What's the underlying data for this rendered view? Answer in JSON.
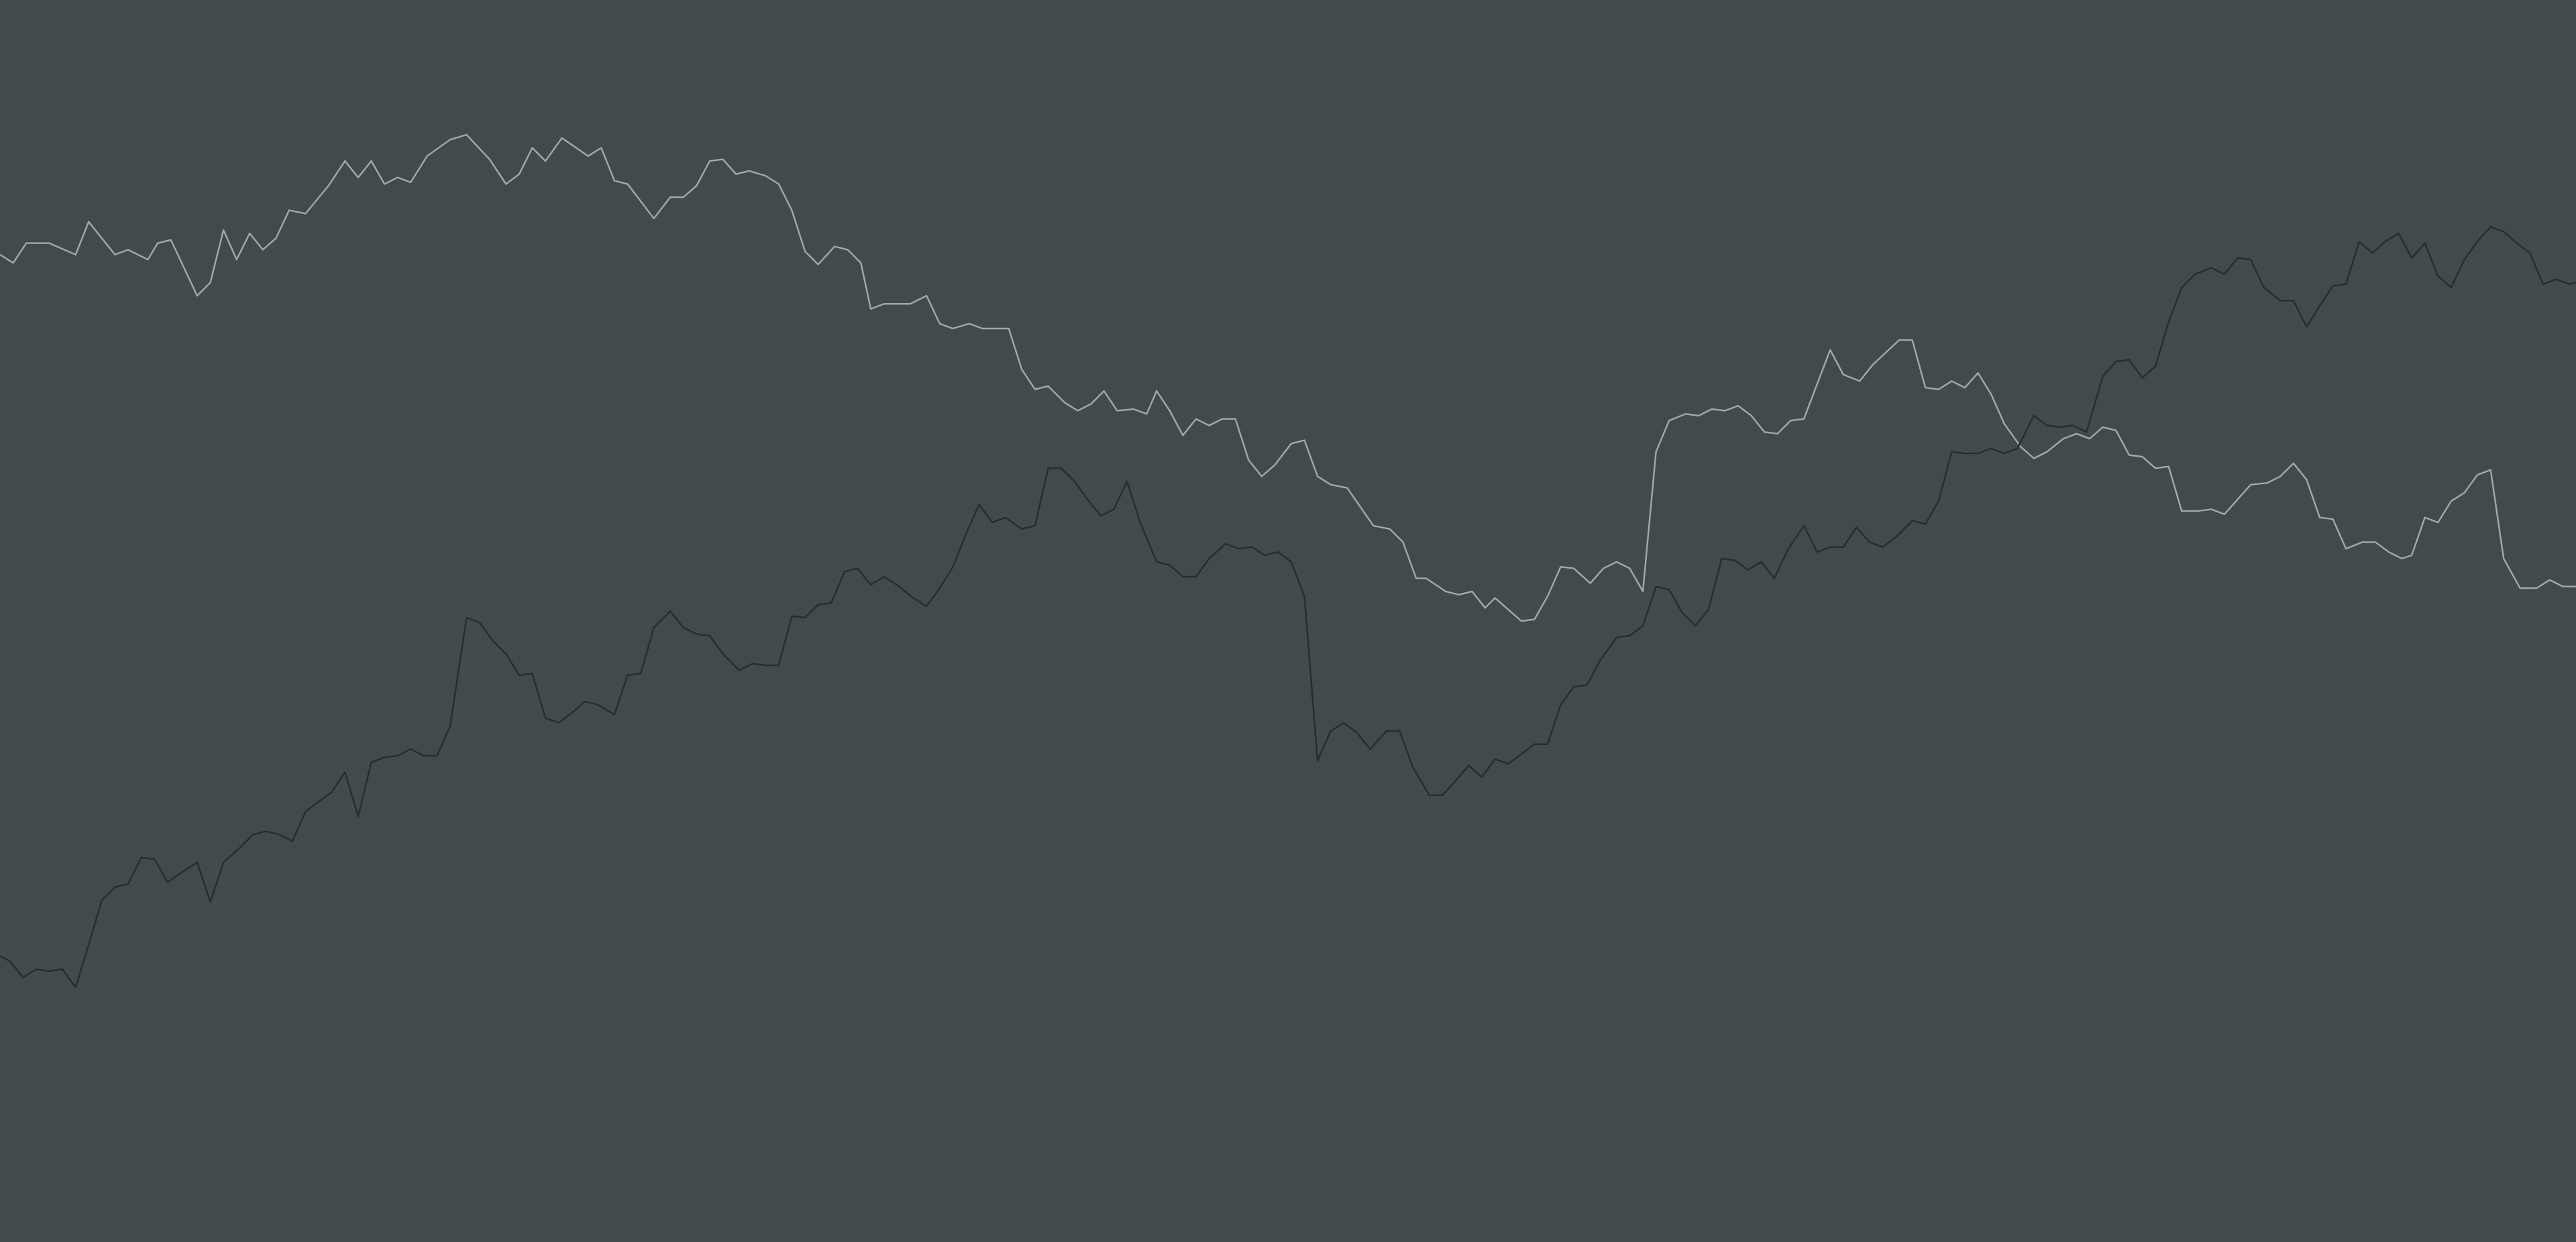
{
  "chart_data": {
    "type": "line",
    "background": "#434a4e",
    "xlim": [
      0,
      1568
    ],
    "ylim": [
      756,
      0
    ],
    "series": [
      {
        "color": "#a3a8aa",
        "x": [
          0,
          8,
          16,
          30,
          46,
          54,
          70,
          78,
          90,
          96,
          104,
          120,
          128,
          136,
          144,
          152,
          160,
          168,
          176,
          186,
          200,
          210,
          218,
          226,
          234,
          242,
          250,
          260,
          274,
          284,
          298,
          308,
          316,
          324,
          332,
          342,
          358,
          366,
          374,
          382,
          398,
          408,
          416,
          424,
          432,
          440,
          448,
          456,
          466,
          474,
          482,
          490,
          498,
          508,
          516,
          524,
          530,
          538,
          554,
          564,
          572,
          580,
          590,
          598,
          614,
          622,
          630,
          638,
          648,
          656,
          664,
          672,
          680,
          690,
          698,
          704,
          712,
          720,
          728,
          736,
          744,
          752,
          760,
          768,
          776,
          786,
          794,
          802,
          810,
          820,
          836,
          846,
          854,
          862,
          868,
          880,
          888,
          896,
          904,
          910,
          926,
          934,
          942,
          950,
          958,
          968,
          976,
          984,
          992,
          1000,
          1008,
          1016,
          1026,
          1034,
          1042,
          1050,
          1058,
          1066,
          1074,
          1082,
          1090,
          1098,
          1106,
          1114,
          1122,
          1132,
          1140,
          1156,
          1164,
          1172,
          1180,
          1188,
          1196,
          1204,
          1212,
          1220,
          1230,
          1238,
          1246,
          1256,
          1264,
          1272,
          1280,
          1288,
          1296,
          1304,
          1312,
          1320,
          1328,
          1338,
          1346,
          1354,
          1370,
          1380,
          1388,
          1396,
          1404,
          1412,
          1420,
          1428,
          1438,
          1446,
          1454,
          1462,
          1468,
          1476,
          1484,
          1492,
          1500,
          1508,
          1516,
          1524,
          1534,
          1544,
          1552,
          1560,
          1568
        ],
        "values": [
          155,
          160,
          148,
          148,
          155,
          135,
          155,
          152,
          158,
          148,
          146,
          180,
          172,
          140,
          158,
          142,
          152,
          145,
          128,
          130,
          113,
          98,
          108,
          98,
          112,
          108,
          111,
          95,
          85,
          82,
          97,
          112,
          106,
          90,
          98,
          84,
          95,
          90,
          110,
          112,
          133,
          120,
          120,
          113,
          98,
          97,
          106,
          104,
          107,
          112,
          128,
          153,
          161,
          150,
          152,
          160,
          188,
          185,
          185,
          180,
          197,
          200,
          197,
          200,
          200,
          225,
          237,
          235,
          245,
          250,
          246,
          238,
          250,
          249,
          252,
          238,
          250,
          265,
          255,
          259,
          255,
          255,
          280,
          290,
          283,
          270,
          268,
          290,
          295,
          297,
          320,
          322,
          330,
          352,
          352,
          360,
          362,
          360,
          370,
          364,
          378,
          377,
          363,
          345,
          346,
          355,
          346,
          342,
          346,
          360,
          275,
          256,
          252,
          253,
          249,
          250,
          247,
          253,
          263,
          264,
          256,
          255,
          234,
          213,
          228,
          232,
          222,
          207,
          207,
          236,
          237,
          232,
          236,
          227,
          240,
          258,
          272,
          279,
          275,
          267,
          264,
          267,
          260,
          262,
          277,
          278,
          285,
          284,
          311,
          311,
          310,
          313,
          295,
          294,
          290,
          282,
          292,
          315,
          316,
          334,
          330,
          330,
          336,
          340,
          338,
          315,
          318,
          305,
          300,
          289,
          286,
          340,
          358,
          358,
          353,
          357,
          357
        ]
      },
      {
        "color": "#262c2f",
        "x": [
          0,
          6,
          14,
          22,
          30,
          38,
          46,
          54,
          62,
          70,
          78,
          86,
          94,
          102,
          112,
          120,
          128,
          136,
          146,
          154,
          162,
          170,
          178,
          186,
          194,
          202,
          210,
          218,
          226,
          234,
          242,
          250,
          258,
          266,
          274,
          284,
          292,
          300,
          308,
          316,
          324,
          332,
          340,
          348,
          356,
          364,
          374,
          382,
          390,
          398,
          408,
          416,
          424,
          432,
          440,
          450,
          458,
          466,
          474,
          482,
          490,
          498,
          506,
          514,
          522,
          530,
          538,
          546,
          556,
          564,
          572,
          580,
          588,
          596,
          604,
          612,
          622,
          630,
          638,
          646,
          654,
          662,
          670,
          678,
          686,
          694,
          704,
          712,
          720,
          728,
          736,
          746,
          754,
          762,
          770,
          778,
          786,
          794,
          802,
          810,
          818,
          826,
          834,
          844,
          852,
          860,
          870,
          878,
          888,
          894,
          902,
          910,
          918,
          926,
          934,
          942,
          950,
          958,
          966,
          974,
          984,
          992,
          1000,
          1008,
          1016,
          1024,
          1032,
          1040,
          1048,
          1056,
          1064,
          1072,
          1080,
          1088,
          1098,
          1106,
          1114,
          1122,
          1130,
          1138,
          1146,
          1154,
          1164,
          1172,
          1180,
          1188,
          1196,
          1204,
          1212,
          1220,
          1228,
          1238,
          1246,
          1254,
          1262,
          1270,
          1280,
          1288,
          1296,
          1304,
          1312,
          1320,
          1328,
          1336,
          1346,
          1354,
          1362,
          1370,
          1378,
          1388,
          1396,
          1404,
          1412,
          1420,
          1428,
          1436,
          1444,
          1452,
          1460,
          1468,
          1476,
          1484,
          1492,
          1500,
          1508,
          1516,
          1524,
          1532,
          1540,
          1548,
          1556,
          1564,
          1568
        ],
        "values": [
          582,
          585,
          595,
          590,
          591,
          590,
          601,
          575,
          548,
          540,
          538,
          522,
          523,
          537,
          530,
          525,
          549,
          525,
          516,
          508,
          506,
          508,
          512,
          494,
          488,
          482,
          470,
          497,
          464,
          461,
          460,
          456,
          460,
          460,
          442,
          376,
          379,
          390,
          398,
          411,
          410,
          437,
          440,
          434,
          427,
          429,
          435,
          411,
          410,
          382,
          372,
          382,
          386,
          387,
          398,
          408,
          404,
          405,
          405,
          375,
          376,
          368,
          367,
          348,
          346,
          356,
          351,
          356,
          364,
          369,
          358,
          345,
          325,
          307,
          318,
          315,
          322,
          320,
          285,
          285,
          293,
          304,
          314,
          310,
          293,
          318,
          342,
          344,
          351,
          351,
          340,
          331,
          334,
          333,
          338,
          336,
          342,
          363,
          463,
          445,
          440,
          446,
          456,
          445,
          445,
          467,
          484,
          484,
          473,
          466,
          473,
          462,
          465,
          459,
          453,
          453,
          429,
          418,
          417,
          402,
          388,
          387,
          381,
          357,
          359,
          373,
          381,
          371,
          340,
          341,
          347,
          342,
          352,
          335,
          320,
          336,
          333,
          333,
          321,
          330,
          333,
          327,
          317,
          319,
          305,
          275,
          276,
          276,
          273,
          276,
          273,
          253,
          259,
          260,
          259,
          263,
          229,
          220,
          219,
          230,
          223,
          196,
          175,
          167,
          163,
          167,
          157,
          158,
          175,
          183,
          183,
          199,
          186,
          174,
          173,
          147,
          154,
          147,
          142,
          157,
          148,
          168,
          175,
          158,
          147,
          138,
          141,
          148,
          154,
          173,
          170,
          173,
          172
        ]
      }
    ]
  }
}
